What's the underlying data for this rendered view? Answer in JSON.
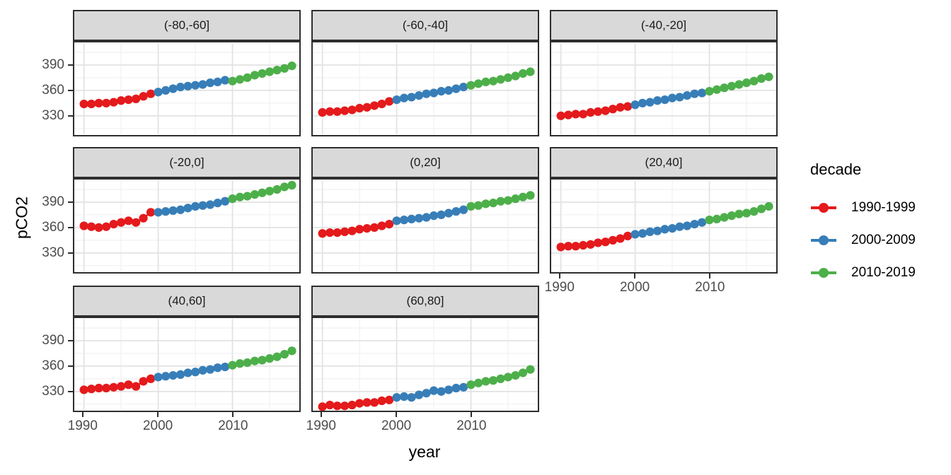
{
  "figure": {
    "background": "#FFFFFF",
    "strip_background": "#D9D9D9",
    "panel_border_color": "#2E2E2E",
    "grid_major_color": "#E3E3E3",
    "grid_minor_color": "#F1F1F1",
    "axis_text_color": "#4D4D4D",
    "x_axis_title": "year",
    "y_axis_title": "pCO2"
  },
  "legend": {
    "title": "decade",
    "items": [
      {
        "label": "1990-1999",
        "color": "#E41A1C"
      },
      {
        "label": "2000-2009",
        "color": "#377EB8"
      },
      {
        "label": "2010-2019",
        "color": "#4DAF4A"
      }
    ]
  },
  "chart_data": {
    "type": "scatter",
    "title": "",
    "xlabel": "year",
    "ylabel": "pCO2",
    "grid": true,
    "legend_position": "right",
    "x": [
      1990,
      1991,
      1992,
      1993,
      1994,
      1995,
      1996,
      1997,
      1998,
      1999,
      2000,
      2001,
      2002,
      2003,
      2004,
      2005,
      2006,
      2007,
      2008,
      2009,
      2010,
      2011,
      2012,
      2013,
      2014,
      2015,
      2016,
      2017,
      2018
    ],
    "xlim": [
      1988.7,
      2019
    ],
    "ylim": [
      308,
      416
    ],
    "x_major_ticks": [
      1990,
      2000,
      2010
    ],
    "x_minor_ticks": [
      1995,
      2005,
      2015
    ],
    "y_major_ticks": [
      330,
      360,
      390
    ],
    "y_minor_ticks": [
      315,
      345,
      375,
      405
    ],
    "x_tick_labels": [
      "1990",
      "2000",
      "2010"
    ],
    "y_tick_labels": [
      "330",
      "360",
      "390"
    ],
    "series_by_decade": [
      {
        "name": "1990-1999",
        "color": "#E41A1C",
        "year_range": [
          1990,
          1999
        ]
      },
      {
        "name": "2000-2009",
        "color": "#377EB8",
        "year_range": [
          2000,
          2009
        ]
      },
      {
        "name": "2010-2019",
        "color": "#4DAF4A",
        "year_range": [
          2010,
          2019
        ]
      }
    ],
    "facets": [
      {
        "label": "(-80,-60]",
        "values": [
          344,
          344,
          345,
          345,
          346,
          348,
          349,
          350,
          353,
          356,
          358,
          360,
          362,
          364,
          365,
          366,
          367,
          369,
          370,
          372,
          371,
          373,
          375,
          378,
          380,
          382,
          384,
          386,
          389
        ]
      },
      {
        "label": "(-60,-40]",
        "values": [
          334,
          335,
          335,
          336,
          337,
          339,
          340,
          342,
          344,
          347,
          349,
          351,
          352,
          354,
          356,
          357,
          359,
          360,
          362,
          364,
          366,
          368,
          370,
          371,
          373,
          375,
          377,
          380,
          382
        ]
      },
      {
        "label": "(-40,-20]",
        "values": [
          330,
          331,
          332,
          332,
          334,
          335,
          336,
          338,
          340,
          341,
          343,
          345,
          346,
          348,
          349,
          351,
          352,
          354,
          356,
          357,
          359,
          361,
          363,
          365,
          367,
          369,
          371,
          374,
          376
        ]
      },
      {
        "label": "(-20,0]",
        "values": [
          362,
          361,
          360,
          361,
          364,
          366,
          368,
          366,
          371,
          378,
          378,
          379,
          380,
          381,
          383,
          385,
          386,
          387,
          389,
          391,
          394,
          396,
          397,
          399,
          401,
          403,
          405,
          408,
          410
        ]
      },
      {
        "label": "(0,20]",
        "values": [
          353,
          354,
          354,
          355,
          356,
          358,
          359,
          360,
          362,
          364,
          368,
          369,
          370,
          371,
          372,
          374,
          375,
          377,
          379,
          381,
          385,
          386,
          388,
          389,
          391,
          392,
          394,
          396,
          398
        ]
      },
      {
        "label": "(20,40]",
        "values": [
          337,
          338,
          338,
          339,
          340,
          342,
          343,
          345,
          347,
          350,
          352,
          353,
          355,
          356,
          358,
          359,
          361,
          362,
          364,
          366,
          369,
          370,
          372,
          374,
          376,
          377,
          379,
          382,
          385
        ]
      },
      {
        "label": "(40,60]",
        "values": [
          332,
          333,
          334,
          334,
          335,
          336,
          338,
          336,
          342,
          345,
          347,
          348,
          349,
          350,
          352,
          353,
          355,
          356,
          358,
          359,
          361,
          363,
          364,
          366,
          367,
          369,
          371,
          374,
          378
        ]
      },
      {
        "label": "(60,80]",
        "values": [
          312,
          314,
          313,
          313,
          314,
          316,
          317,
          317,
          319,
          320,
          323,
          324,
          323,
          326,
          328,
          331,
          330,
          332,
          334,
          335,
          338,
          340,
          342,
          343,
          345,
          347,
          349,
          352,
          356
        ]
      }
    ]
  }
}
